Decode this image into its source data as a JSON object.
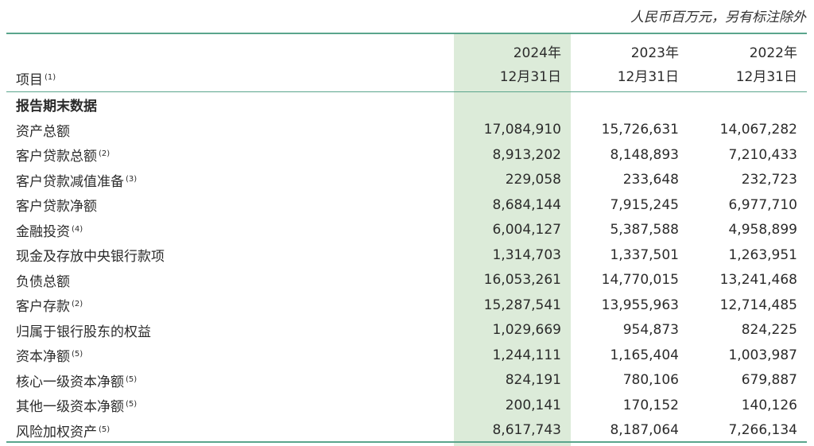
{
  "unit_note": "人民币百万元，另有标注除外",
  "header": {
    "label": "项目",
    "label_note": "(1)",
    "columns": [
      {
        "year": "2024年",
        "date": "12月31日"
      },
      {
        "year": "2023年",
        "date": "12月31日"
      },
      {
        "year": "2022年",
        "date": "12月31日"
      }
    ]
  },
  "section_title": "报告期末数据",
  "rows": [
    {
      "label": "资产总额",
      "note": "",
      "values": [
        "17,084,910",
        "15,726,631",
        "14,067,282"
      ]
    },
    {
      "label": "客户贷款总额",
      "note": "(2)",
      "values": [
        "8,913,202",
        "8,148,893",
        "7,210,433"
      ]
    },
    {
      "label": "客户贷款减值准备",
      "note": "(3)",
      "values": [
        "229,058",
        "233,648",
        "232,723"
      ]
    },
    {
      "label": "客户贷款净额",
      "note": "",
      "values": [
        "8,684,144",
        "7,915,245",
        "6,977,710"
      ]
    },
    {
      "label": "金融投资",
      "note": "(4)",
      "values": [
        "6,004,127",
        "5,387,588",
        "4,958,899"
      ]
    },
    {
      "label": "现金及存放中央银行款项",
      "note": "",
      "values": [
        "1,314,703",
        "1,337,501",
        "1,263,951"
      ]
    },
    {
      "label": "负债总额",
      "note": "",
      "values": [
        "16,053,261",
        "14,770,015",
        "13,241,468"
      ]
    },
    {
      "label": "客户存款",
      "note": "(2)",
      "values": [
        "15,287,541",
        "13,955,963",
        "12,714,485"
      ]
    },
    {
      "label": "归属于银行股东的权益",
      "note": "",
      "values": [
        "1,029,669",
        "954,873",
        "824,225"
      ]
    },
    {
      "label": "资本净额",
      "note": "(5)",
      "values": [
        "1,244,111",
        "1,165,404",
        "1,003,987"
      ]
    },
    {
      "label": "核心一级资本净额",
      "note": "(5)",
      "values": [
        "824,191",
        "780,106",
        "679,887"
      ]
    },
    {
      "label": "其他一级资本净额",
      "note": "(5)",
      "values": [
        "200,141",
        "170,152",
        "140,126"
      ]
    },
    {
      "label": "风险加权资产",
      "note": "(5)",
      "values": [
        "8,617,743",
        "8,187,064",
        "7,266,134"
      ]
    }
  ],
  "colors": {
    "accent_rule": "#5aa58c",
    "highlight_column": "#dcebd9"
  }
}
